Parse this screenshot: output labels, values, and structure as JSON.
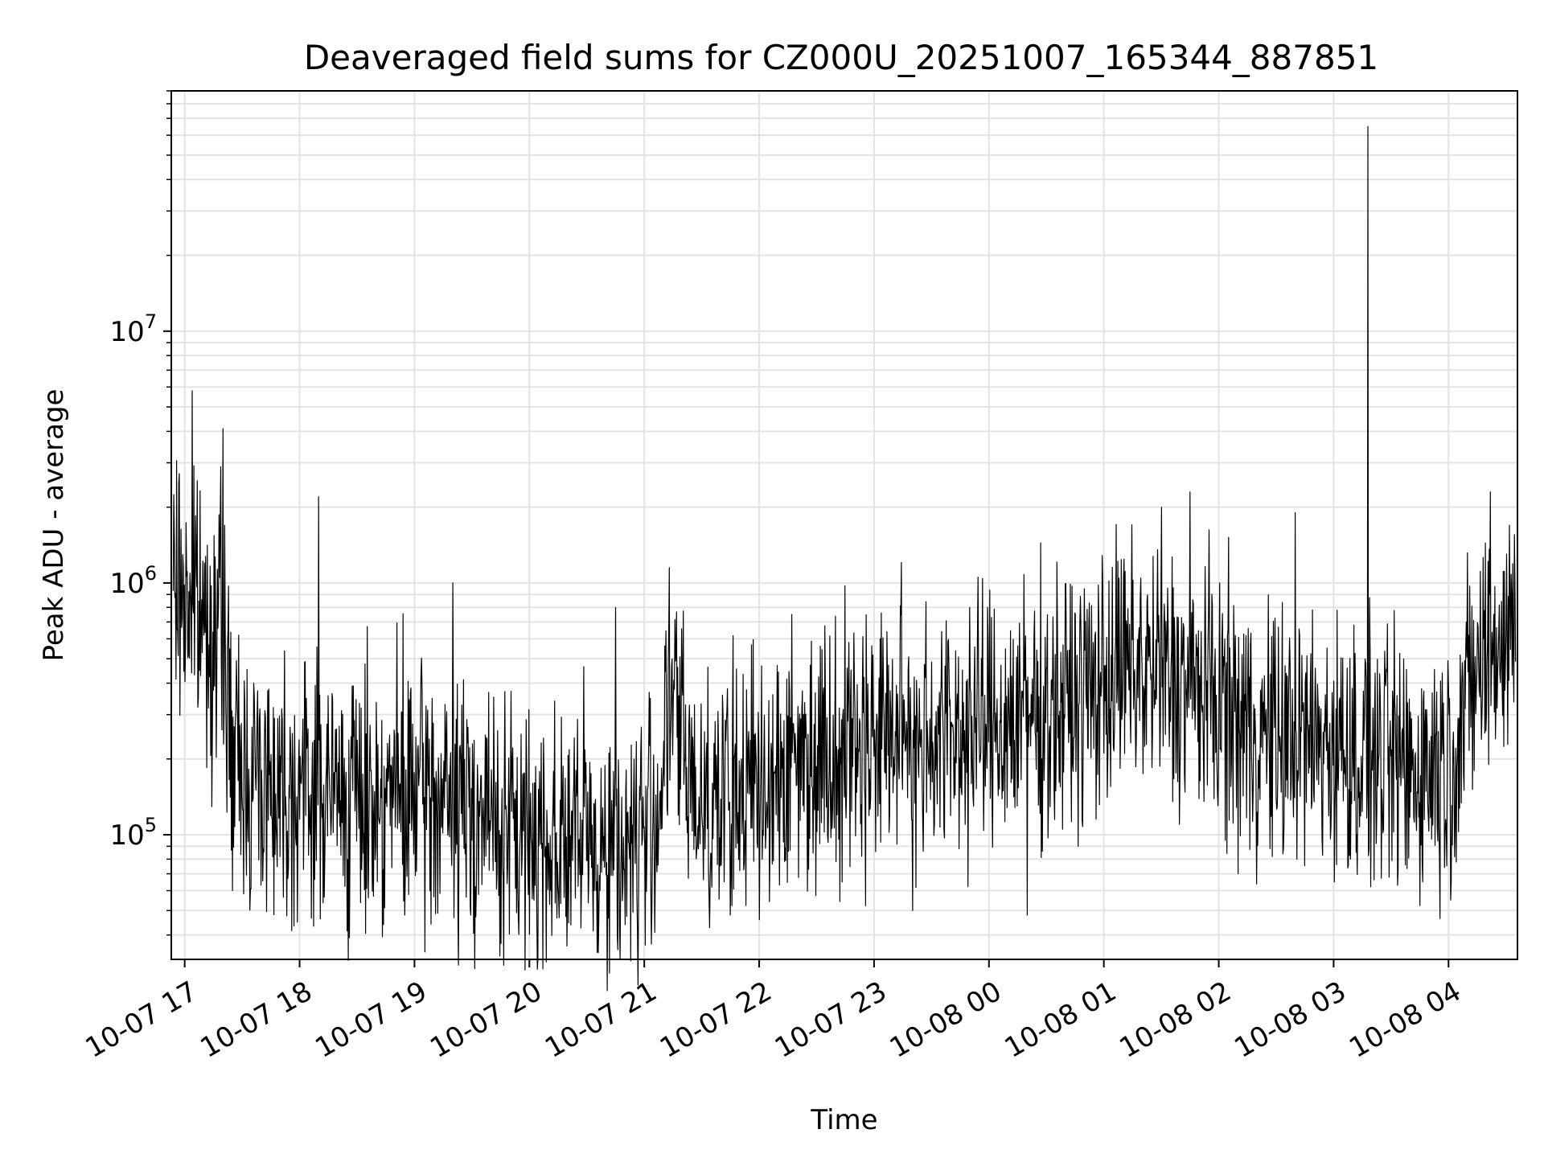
{
  "chart_data": {
    "type": "line",
    "title": "Deaveraged field sums for CZ000U_20251007_165344_887851",
    "xlabel": "Time",
    "ylabel": "Peak ADU - average",
    "x_scale": "time",
    "y_scale": "log",
    "xlim": [
      "2025-10-07 16:53",
      "2025-10-08 04:36"
    ],
    "ylim": [
      32000,
      90000000
    ],
    "x_ticks": [
      "10-07 17",
      "10-07 18",
      "10-07 19",
      "10-07 20",
      "10-07 21",
      "10-07 22",
      "10-07 23",
      "10-08 00",
      "10-08 01",
      "10-08 02",
      "10-08 03",
      "10-08 04"
    ],
    "y_ticks": [
      {
        "value": 100000,
        "base": "10",
        "exp": "5"
      },
      {
        "value": 1000000,
        "base": "10",
        "exp": "6"
      },
      {
        "value": 10000000,
        "base": "10",
        "exp": "7"
      }
    ],
    "grid": true,
    "line_color": "#000000",
    "grid_color": "#e3e3e3",
    "series": [
      {
        "x": [
          "2025-10-07 16:54",
          "2025-10-07 17:00",
          "2025-10-07 17:05",
          "2025-10-07 17:10",
          "2025-10-07 17:20",
          "2025-10-07 17:25",
          "2025-10-07 17:30",
          "2025-10-07 17:40",
          "2025-10-07 17:55",
          "2025-10-07 18:10",
          "2025-10-07 18:30",
          "2025-10-07 18:50",
          "2025-10-07 19:10",
          "2025-10-07 19:30",
          "2025-10-07 19:50",
          "2025-10-07 20:10",
          "2025-10-07 20:30",
          "2025-10-07 20:50",
          "2025-10-07 21:05",
          "2025-10-07 21:15",
          "2025-10-07 21:25",
          "2025-10-07 21:45",
          "2025-10-07 22:00",
          "2025-10-07 22:20",
          "2025-10-07 22:40",
          "2025-10-07 23:00",
          "2025-10-07 23:20",
          "2025-10-07 23:40",
          "2025-10-08 00:00",
          "2025-10-08 00:20",
          "2025-10-08 00:40",
          "2025-10-08 00:55",
          "2025-10-08 01:05",
          "2025-10-08 01:20",
          "2025-10-08 01:40",
          "2025-10-08 02:00",
          "2025-10-08 02:20",
          "2025-10-08 02:40",
          "2025-10-08 03:00",
          "2025-10-08 03:20",
          "2025-10-08 03:40",
          "2025-10-08 04:00",
          "2025-10-08 04:15",
          "2025-10-08 04:35"
        ],
        "y": [
          1000000,
          900000,
          800000,
          700000,
          650000,
          200000,
          180000,
          170000,
          160000,
          150000,
          140000,
          150000,
          140000,
          130000,
          100000,
          100000,
          95000,
          90000,
          110000,
          350000,
          150000,
          140000,
          170000,
          200000,
          230000,
          250000,
          260000,
          250000,
          270000,
          300000,
          330000,
          380000,
          450000,
          450000,
          400000,
          350000,
          250000,
          240000,
          230000,
          200000,
          180000,
          200000,
          450000,
          700000
        ],
        "peaks_x": [
          "2025-10-07 17:04",
          "2025-10-07 17:20",
          "2025-10-07 18:10",
          "2025-10-07 19:20",
          "2025-10-07 20:45",
          "2025-10-07 21:13",
          "2025-10-07 23:50",
          "2025-10-08 01:30",
          "2025-10-08 01:45",
          "2025-10-08 02:40",
          "2025-10-08 03:18",
          "2025-10-08 04:22"
        ],
        "peaks_y": [
          5800000,
          4100000,
          2200000,
          1000000,
          800000,
          1150000,
          800000,
          2000000,
          2300000,
          1900000,
          65000000,
          2300000
        ],
        "troughs_x": [
          "2025-10-07 17:25",
          "2025-10-07 18:55",
          "2025-10-07 20:50",
          "2025-10-07 21:45",
          "2025-10-07 22:00",
          "2025-10-07 23:20",
          "2025-10-08 00:20",
          "2025-10-08 02:10",
          "2025-10-08 04:01"
        ],
        "troughs_y": [
          60000,
          48000,
          44000,
          48000,
          46000,
          50000,
          48000,
          70000,
          55000
        ]
      }
    ]
  }
}
